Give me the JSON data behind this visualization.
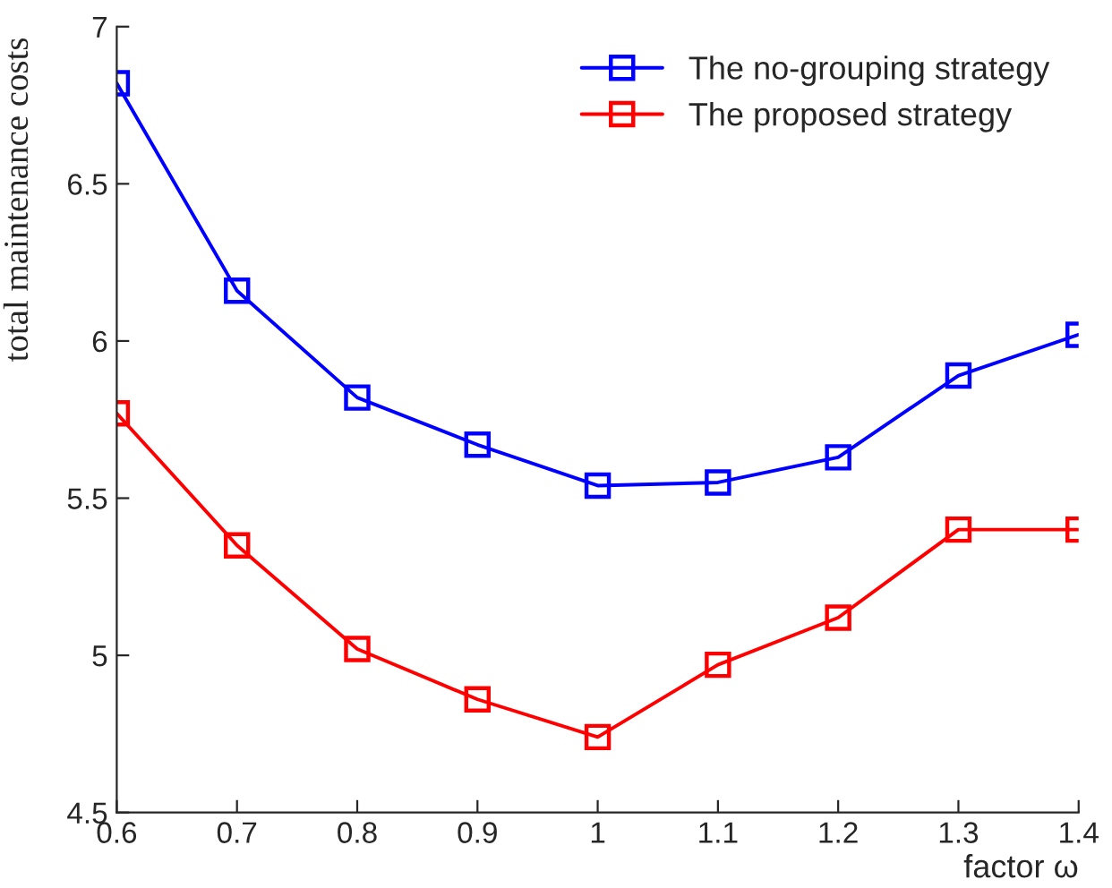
{
  "chart_data": {
    "type": "line",
    "xlabel": "factor ω",
    "ylabel": "total maintenance costs",
    "x": [
      0.6,
      0.7,
      0.8,
      0.9,
      1.0,
      1.1,
      1.2,
      1.3,
      1.4
    ],
    "series": [
      {
        "name": "The no-grouping strategy",
        "color": "#0000ff",
        "values": [
          6.82,
          6.16,
          5.82,
          5.67,
          5.54,
          5.55,
          5.63,
          5.89,
          6.02
        ]
      },
      {
        "name": "The proposed strategy",
        "color": "#ff0000",
        "values": [
          5.77,
          5.35,
          5.02,
          4.86,
          4.74,
          4.97,
          5.12,
          5.4,
          5.4
        ]
      }
    ],
    "xlim": [
      0.6,
      1.4
    ],
    "ylim": [
      4.5,
      7
    ],
    "xticks": [
      0.6,
      0.7,
      0.8,
      0.9,
      {
        "value": 1.0,
        "label": "1"
      },
      1.1,
      1.2,
      1.3,
      1.4
    ],
    "yticks": [
      4.5,
      5,
      5.5,
      6,
      6.5,
      7
    ],
    "marker": "square",
    "line_style": "solid",
    "legend": "top right",
    "grid": false
  }
}
